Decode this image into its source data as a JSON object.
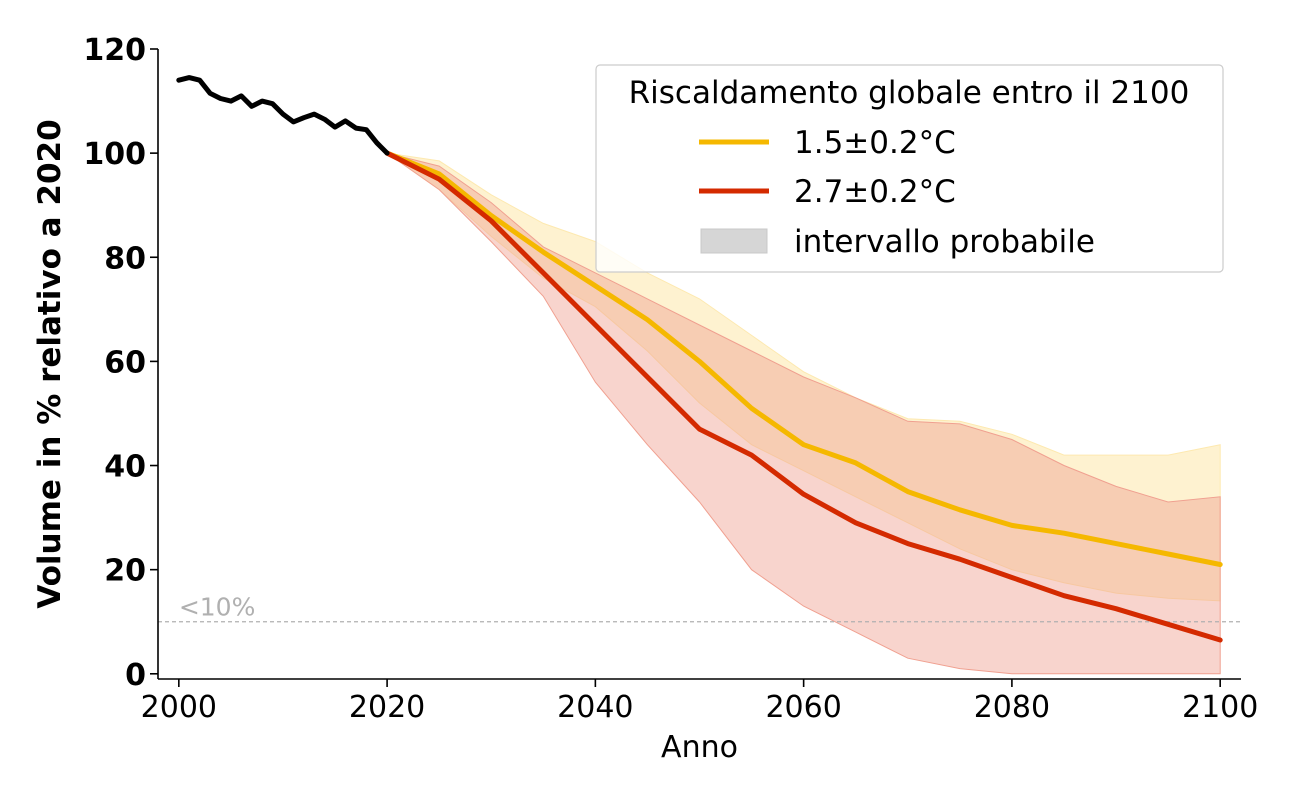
{
  "chart_data": {
    "type": "line",
    "xlabel": "Anno",
    "ylabel": "Volume in % relativo a 2020",
    "xlim": [
      1998,
      2102
    ],
    "ylim": [
      -1,
      120
    ],
    "xticks": [
      2000,
      2020,
      2040,
      2060,
      2080,
      2100
    ],
    "xtick_labels": [
      "2000",
      "2020",
      "2040",
      "2060",
      "2080",
      "2100"
    ],
    "yticks": [
      0,
      20,
      40,
      60,
      80,
      100,
      120
    ],
    "ytick_labels": [
      "0",
      "20",
      "40",
      "60",
      "80",
      "100",
      "120"
    ],
    "grid": false,
    "legend_title": "Riscaldamento globale entro il 2100",
    "legend_placement": "top-right",
    "legend_range_label": "intervallo probabile",
    "threshold": {
      "y": 10,
      "label": "<10%",
      "color": "#b0b0b0"
    },
    "historical": {
      "color": "#000000",
      "x": [
        2000,
        2001,
        2002,
        2003,
        2004,
        2005,
        2006,
        2007,
        2008,
        2009,
        2010,
        2011,
        2012,
        2013,
        2014,
        2015,
        2016,
        2017,
        2018,
        2019,
        2020
      ],
      "y": [
        114,
        114.5,
        114,
        111.5,
        110.5,
        110,
        111,
        109,
        110,
        109.5,
        107.5,
        106,
        106.8,
        107.5,
        106.5,
        105,
        106.2,
        104.8,
        104.5,
        102,
        100
      ]
    },
    "series": [
      {
        "name": "1.5±0.2°C",
        "color": "#f5b800",
        "band_color": "#fde9b0",
        "x": [
          2020,
          2025,
          2030,
          2035,
          2040,
          2045,
          2050,
          2055,
          2060,
          2065,
          2070,
          2075,
          2080,
          2085,
          2090,
          2095,
          2100
        ],
        "y": [
          100,
          96,
          88,
          81,
          74.5,
          68,
          60,
          51,
          44,
          40.5,
          35,
          31.5,
          28.5,
          27,
          25,
          23,
          21
        ],
        "lower": [
          100,
          93,
          84,
          76,
          70.5,
          62,
          52,
          44,
          39,
          34,
          29,
          24,
          20,
          17.5,
          15.5,
          14.5,
          14
        ],
        "upper": [
          100,
          98.5,
          92,
          86.5,
          83,
          77,
          72,
          65,
          58,
          53,
          49,
          48.5,
          46,
          42,
          42,
          42,
          44
        ]
      },
      {
        "name": "2.7±0.2°C",
        "color": "#d42a00",
        "band_color": "#f0a090",
        "x": [
          2020,
          2025,
          2030,
          2035,
          2040,
          2045,
          2050,
          2055,
          2060,
          2065,
          2070,
          2075,
          2080,
          2085,
          2090,
          2095,
          2100
        ],
        "y": [
          100,
          95,
          87,
          77,
          67,
          57,
          47,
          42,
          34.5,
          29,
          25,
          22,
          18.5,
          15,
          12.5,
          9.5,
          6.5
        ],
        "lower": [
          100,
          93,
          83,
          72.5,
          56,
          44,
          33,
          20,
          13,
          8,
          3,
          1,
          0,
          0,
          0,
          0,
          0
        ],
        "upper": [
          100,
          97.5,
          90.5,
          82,
          77,
          72,
          67,
          62,
          57,
          53,
          48.5,
          48,
          45,
          40,
          36,
          33,
          34
        ]
      }
    ]
  }
}
